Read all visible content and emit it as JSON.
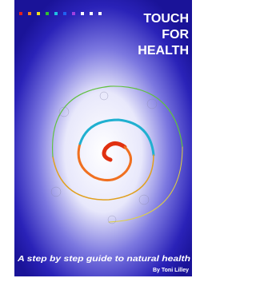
{
  "cover": {
    "title_lines": [
      "TOUCH",
      "FOR",
      "HEALTH"
    ],
    "subtitle": "A step by step guide to natural health",
    "author": "By Toni Lilley"
  }
}
